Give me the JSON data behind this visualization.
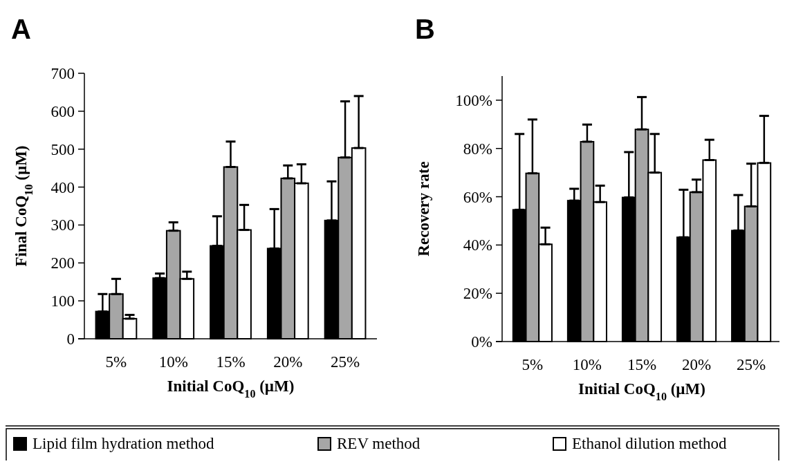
{
  "chart_data": [
    {
      "type": "bar",
      "title": "A",
      "xlabel": "Initial CoQ$_{10}$ (µM)",
      "ylabel": "Final CoQ$_{10}$ (µM)",
      "categories": [
        "5%",
        "10%",
        "15%",
        "20%",
        "25%"
      ],
      "ylim": [
        0,
        700
      ],
      "yticks": [
        0,
        100,
        200,
        300,
        400,
        500,
        600,
        700
      ],
      "grid": false,
      "legend": "bottom",
      "series": [
        {
          "name": "Lipid film hydration method",
          "color": "#000000",
          "values": [
            72,
            160,
            245,
            238,
            312
          ],
          "errors": [
            [
              72,
              118
            ],
            [
              160,
              172
            ],
            [
              245,
              323
            ],
            [
              238,
              342
            ],
            [
              312,
              415
            ]
          ]
        },
        {
          "name": "REV method",
          "color": "#a6a6a6",
          "values": [
            118,
            285,
            453,
            423,
            478
          ],
          "errors": [
            [
              118,
              158
            ],
            [
              285,
              307
            ],
            [
              453,
              520
            ],
            [
              423,
              457
            ],
            [
              478,
              626
            ]
          ]
        },
        {
          "name": "Ethanol dilution method",
          "color": "#ffffff",
          "values": [
            53,
            158,
            287,
            410,
            503
          ],
          "errors": [
            [
              53,
              63
            ],
            [
              158,
              177
            ],
            [
              287,
              353
            ],
            [
              410,
              460
            ],
            [
              503,
              640
            ]
          ]
        }
      ]
    },
    {
      "type": "bar",
      "title": "B",
      "xlabel": "Initial CoQ$_{10}$ (µM)",
      "ylabel": "Recovery rate",
      "categories": [
        "5%",
        "10%",
        "15%",
        "20%",
        "25%"
      ],
      "ylim": [
        0,
        110
      ],
      "yticks": [
        {
          "value": 0,
          "label": "0%"
        },
        {
          "value": 20,
          "label": "20%"
        },
        {
          "value": 40,
          "label": "40%"
        },
        {
          "value": 60,
          "label": "60%"
        },
        {
          "value": 80,
          "label": "80%"
        },
        {
          "value": 100,
          "label": "100%"
        }
      ],
      "grid": false,
      "legend": "bottom",
      "series": [
        {
          "name": "Lipid film hydration method",
          "color": "#000000",
          "values": [
            54.6,
            58.4,
            59.7,
            43.2,
            46
          ],
          "errors": [
            [
              54.6,
              86
            ],
            [
              58.4,
              63.3
            ],
            [
              59.7,
              78.5
            ],
            [
              43.2,
              62.9
            ],
            [
              46,
              60.7
            ]
          ]
        },
        {
          "name": "REV method",
          "color": "#a6a6a6",
          "values": [
            69.7,
            82.8,
            87.9,
            61.9,
            56
          ],
          "errors": [
            [
              69.7,
              92
            ],
            [
              82.8,
              89.9
            ],
            [
              87.9,
              101.3
            ],
            [
              61.9,
              67.1
            ],
            [
              56,
              73.7
            ]
          ]
        },
        {
          "name": "Ethanol dilution method",
          "color": "#ffffff",
          "values": [
            40.3,
            57.8,
            70,
            75.2,
            74
          ],
          "errors": [
            [
              40.3,
              47.2
            ],
            [
              57.8,
              64.6
            ],
            [
              70,
              86
            ],
            [
              75.2,
              83.6
            ],
            [
              74,
              93.5
            ]
          ]
        }
      ]
    }
  ]
}
